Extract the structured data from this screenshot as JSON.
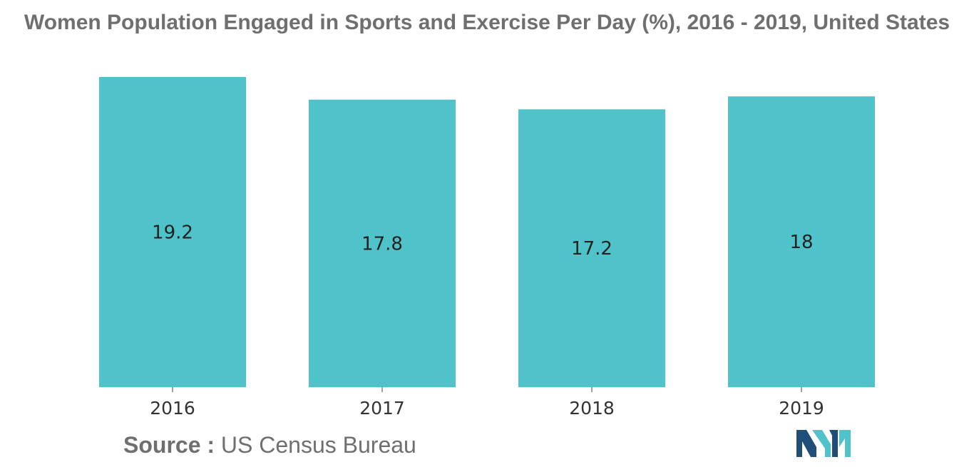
{
  "chart_data": {
    "type": "bar",
    "title": "Women Population Engaged in Sports and Exercise Per Day (%), 2016 - 2019, United States",
    "categories": [
      "2016",
      "2017",
      "2018",
      "2019"
    ],
    "values": [
      19.2,
      17.8,
      17.2,
      18
    ],
    "value_labels": [
      "19.2",
      "17.8",
      "17.2",
      "18"
    ],
    "xlabel": "",
    "ylabel": "",
    "ylim": [
      0,
      19.2
    ],
    "grid": false,
    "legend": "none",
    "bar_color": "#4fc3c9"
  },
  "source": {
    "label": "Source :",
    "text": "US Census Bureau"
  },
  "logo": {
    "icon": "mordor-intelligence-logo-icon",
    "colors": [
      "#1f4e79",
      "#4fc3c9"
    ]
  }
}
